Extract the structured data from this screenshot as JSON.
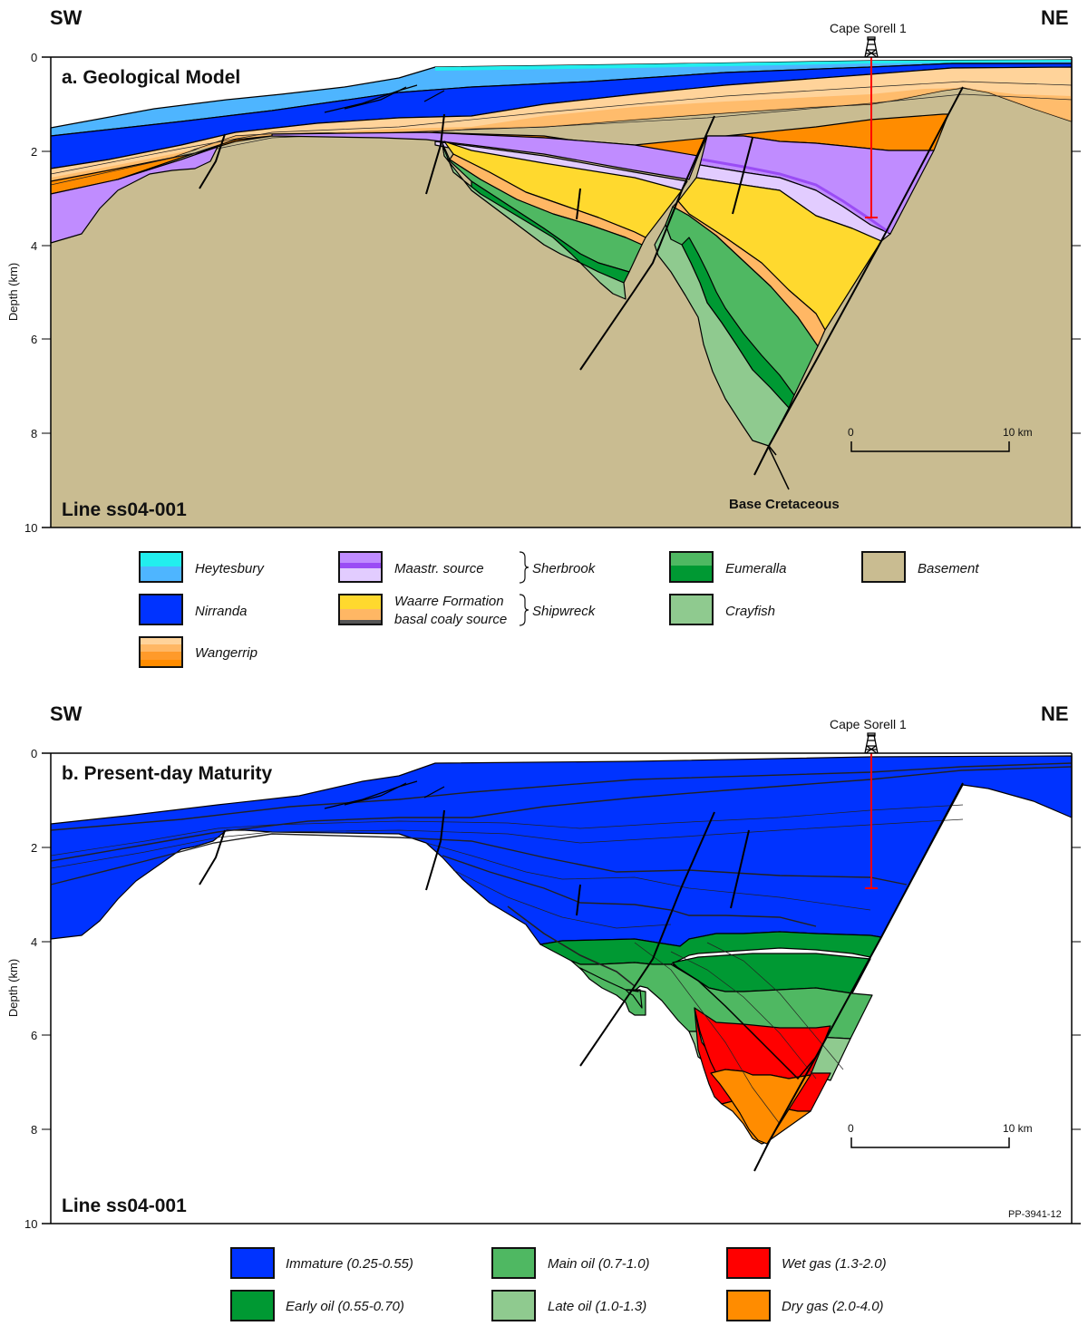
{
  "panel_a": {
    "direction_left": "SW",
    "direction_right": "NE",
    "title": "a. Geological Model",
    "line_label": "Line ss04-001",
    "well_name": "Cape Sorell 1",
    "annotation": "Base Cretaceous",
    "y_axis_label": "Depth (km)",
    "y_ticks": [
      "0",
      "2",
      "4",
      "6",
      "8",
      "10"
    ],
    "scale_bar": {
      "start": "0",
      "end": "10 km"
    }
  },
  "panel_b": {
    "direction_left": "SW",
    "direction_right": "NE",
    "title": "b. Present-day Maturity",
    "line_label": "Line ss04-001",
    "well_name": "Cape Sorell 1",
    "figure_code": "PP-3941-12",
    "y_axis_label": "Depth (km)",
    "y_ticks": [
      "0",
      "2",
      "4",
      "6",
      "8",
      "10"
    ],
    "scale_bar": {
      "start": "0",
      "end": "10 km"
    }
  },
  "legend_a": {
    "items": [
      {
        "label": "Heytesbury",
        "colors": [
          "#22eeee",
          "#4eb5ff"
        ]
      },
      {
        "label": "Nirranda",
        "colors": [
          "#0033ff"
        ]
      },
      {
        "label": "Wangerrip",
        "colors": [
          "#ffd39a",
          "#ffb764",
          "#ff9a2a",
          "#ff8c00"
        ]
      },
      {
        "label": "Maastr. source",
        "colors": [
          "#c08cff",
          "#9a4cf5",
          "#e2ccff"
        ]
      },
      {
        "label_line1": "Waarre Formation",
        "label_line2": "basal coaly source",
        "colors": [
          "#ffd92e",
          "#ffb764",
          "#555555"
        ]
      },
      {
        "label": "Eumeralla",
        "colors": [
          "#4fb862",
          "#009933"
        ]
      },
      {
        "label": "Crayfish",
        "colors": [
          "#8fca8f"
        ]
      },
      {
        "label": "Basement",
        "colors": [
          "#c9bc91"
        ]
      }
    ],
    "groups": [
      {
        "label": "Sherbrook"
      },
      {
        "label": "Shipwreck"
      }
    ]
  },
  "legend_b": {
    "items": [
      {
        "label": "Immature (0.25-0.55)",
        "color": "#0033ff"
      },
      {
        "label": "Early oil (0.55-0.70)",
        "color": "#009933"
      },
      {
        "label": "Main oil (0.7-1.0)",
        "color": "#4fb862"
      },
      {
        "label": "Late oil (1.0-1.3)",
        "color": "#8fca8f"
      },
      {
        "label": "Wet gas (1.3-2.0)",
        "color": "#ff0000"
      },
      {
        "label": "Dry gas (2.0-4.0)",
        "color": "#ff8c00"
      }
    ]
  },
  "colors": {
    "well": "#ff0000",
    "basement": "#c9bc91"
  }
}
